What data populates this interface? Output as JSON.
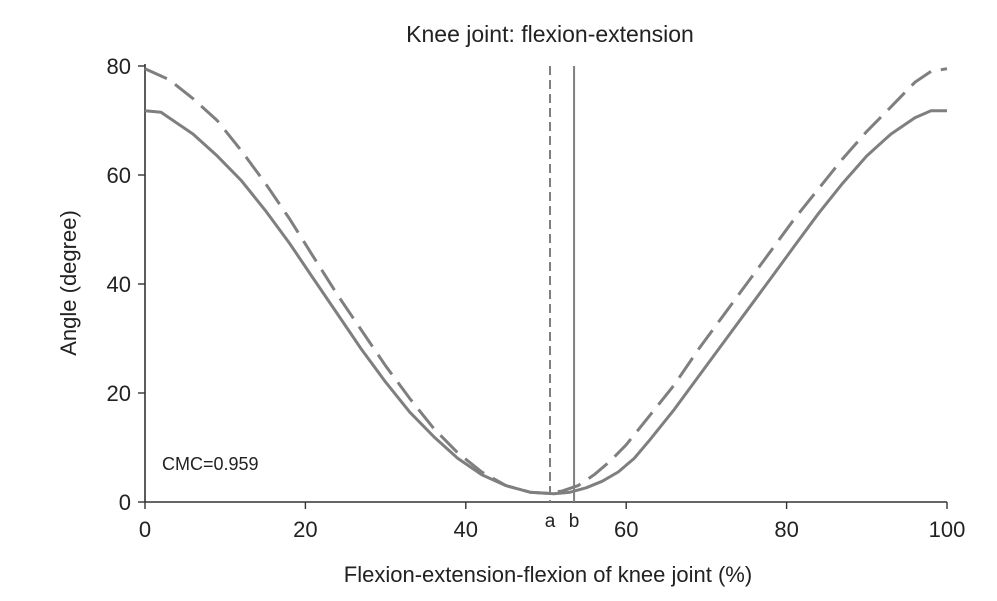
{
  "chart_data": {
    "type": "line",
    "title": "Knee joint: flexion-extension",
    "xlabel": "Flexion-extension-flexion of knee joint (%)",
    "ylabel": "Angle (degree)",
    "xlim": [
      0,
      100
    ],
    "ylim": [
      0,
      80
    ],
    "xticks": [
      0,
      20,
      40,
      60,
      80,
      100
    ],
    "yticks": [
      0,
      20,
      40,
      60,
      80
    ],
    "grid": false,
    "annotation": "CMC=0.959",
    "series": [
      {
        "style": "dashed",
        "color": "#7f7f7f",
        "x": [
          0,
          3,
          6,
          9,
          12,
          15,
          18,
          21,
          24,
          27,
          30,
          33,
          36,
          39,
          42,
          45,
          48,
          50,
          52,
          54,
          56,
          58,
          60,
          63,
          66,
          69,
          72,
          75,
          78,
          81,
          84,
          87,
          90,
          93,
          96,
          98,
          100
        ],
        "y": [
          79.5,
          77.5,
          74,
          70,
          64.5,
          58.5,
          52,
          45,
          38,
          31.5,
          25,
          19,
          13.5,
          9,
          5.5,
          3,
          1.8,
          1.6,
          2,
          3,
          5,
          7.5,
          10.5,
          16,
          21.5,
          28,
          34,
          40,
          46,
          52,
          57.5,
          63,
          68,
          72.5,
          77,
          79,
          79.5
        ]
      },
      {
        "style": "solid",
        "color": "#7f7f7f",
        "x": [
          0,
          2,
          4,
          6,
          9,
          12,
          15,
          18,
          21,
          24,
          27,
          30,
          33,
          36,
          39,
          42,
          45,
          48,
          51,
          53,
          55,
          57,
          59,
          61,
          63,
          66,
          69,
          72,
          75,
          78,
          81,
          84,
          87,
          90,
          93,
          96,
          98,
          100
        ],
        "y": [
          71.8,
          71.5,
          69.5,
          67.5,
          63.5,
          59,
          53.5,
          47.5,
          41,
          34.5,
          28,
          22,
          16.5,
          12,
          8,
          5,
          3,
          1.8,
          1.5,
          1.8,
          2.6,
          3.8,
          5.5,
          8,
          11.5,
          17,
          23,
          29,
          35,
          41,
          47,
          53,
          58.5,
          63.5,
          67.5,
          70.5,
          71.8,
          71.8
        ]
      }
    ],
    "vertical_markers": [
      {
        "label": "a",
        "x": 50.5,
        "style": "dashed",
        "color": "#7f7f7f"
      },
      {
        "label": "b",
        "x": 53.5,
        "style": "solid",
        "color": "#7f7f7f"
      }
    ]
  }
}
